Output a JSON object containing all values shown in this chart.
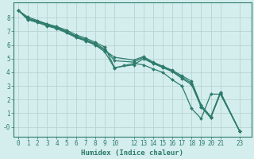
{
  "xlabel": "Humidex (Indice chaleur)",
  "bg_color": "#d4eeed",
  "line_color": "#2d7b6b",
  "grid_color": "#b8d4d0",
  "xtick_labels": [
    "0",
    "1",
    "2",
    "3",
    "4",
    "5",
    "6",
    "7",
    "8",
    "9",
    "10",
    "12",
    "13",
    "14",
    "15",
    "16",
    "17",
    "18",
    "19",
    "20",
    "21",
    "23"
  ],
  "xtick_pos": [
    0,
    1,
    2,
    3,
    4,
    5,
    6,
    7,
    8,
    9,
    10,
    12,
    13,
    14,
    15,
    16,
    17,
    18,
    19,
    20,
    21,
    23
  ],
  "yticks": [
    0,
    1,
    2,
    3,
    4,
    5,
    6,
    7,
    8
  ],
  "ytick_labels": [
    "-0",
    "1",
    "2",
    "3",
    "4",
    "5",
    "6",
    "7",
    "8"
  ],
  "ylim": [
    -0.7,
    9.1
  ],
  "xlim": [
    -0.5,
    24.2
  ],
  "lines": [
    {
      "x": [
        0,
        1,
        2,
        3,
        4,
        5,
        6,
        7,
        8,
        9,
        10,
        12,
        13,
        14,
        15,
        16,
        17,
        18,
        19,
        20,
        21,
        23
      ],
      "y": [
        8.55,
        8.05,
        7.8,
        7.55,
        7.35,
        7.1,
        6.75,
        6.5,
        6.2,
        5.85,
        4.35,
        4.55,
        5.0,
        4.65,
        4.35,
        4.05,
        3.55,
        3.1,
        1.45,
        0.65,
        2.45,
        -0.32
      ],
      "marker": "D",
      "markersize": 2.0,
      "linewidth": 0.9
    },
    {
      "x": [
        0,
        1,
        2,
        3,
        4,
        5,
        6,
        7,
        8,
        9,
        10,
        12,
        13,
        14,
        15,
        16,
        17,
        18,
        19,
        20,
        21,
        23
      ],
      "y": [
        8.55,
        7.95,
        7.75,
        7.5,
        7.3,
        7.0,
        6.65,
        6.4,
        6.1,
        5.7,
        4.85,
        4.75,
        5.1,
        4.7,
        4.4,
        4.1,
        3.65,
        3.2,
        1.5,
        0.7,
        2.5,
        -0.32
      ],
      "marker": "D",
      "markersize": 2.0,
      "linewidth": 0.9
    },
    {
      "x": [
        0,
        1,
        2,
        3,
        4,
        5,
        6,
        7,
        8,
        9,
        10,
        12,
        13,
        14,
        15,
        16,
        17,
        18,
        19,
        20,
        21,
        23
      ],
      "y": [
        8.55,
        7.9,
        7.7,
        7.45,
        7.25,
        6.95,
        6.6,
        6.35,
        6.05,
        5.6,
        5.1,
        4.9,
        5.15,
        4.75,
        4.45,
        4.15,
        3.75,
        3.35,
        1.6,
        0.75,
        2.55,
        -0.32
      ],
      "marker": "D",
      "markersize": 2.0,
      "linewidth": 0.9
    },
    {
      "x": [
        0,
        1,
        2,
        3,
        4,
        5,
        6,
        7,
        8,
        9,
        10,
        11,
        12,
        13,
        14,
        15,
        16,
        17,
        18,
        19,
        20,
        21,
        23
      ],
      "y": [
        8.55,
        7.85,
        7.65,
        7.4,
        7.2,
        6.9,
        6.55,
        6.3,
        6.0,
        5.5,
        4.3,
        4.5,
        4.65,
        4.55,
        4.25,
        4.0,
        3.45,
        3.0,
        1.35,
        0.6,
        2.4,
        2.4,
        -0.32
      ],
      "marker": "D",
      "markersize": 2.0,
      "linewidth": 0.9
    }
  ],
  "axis_color": "#2d7b6b",
  "tick_color": "#2d7b6b",
  "label_fontsize": 6.5,
  "tick_fontsize": 5.5
}
